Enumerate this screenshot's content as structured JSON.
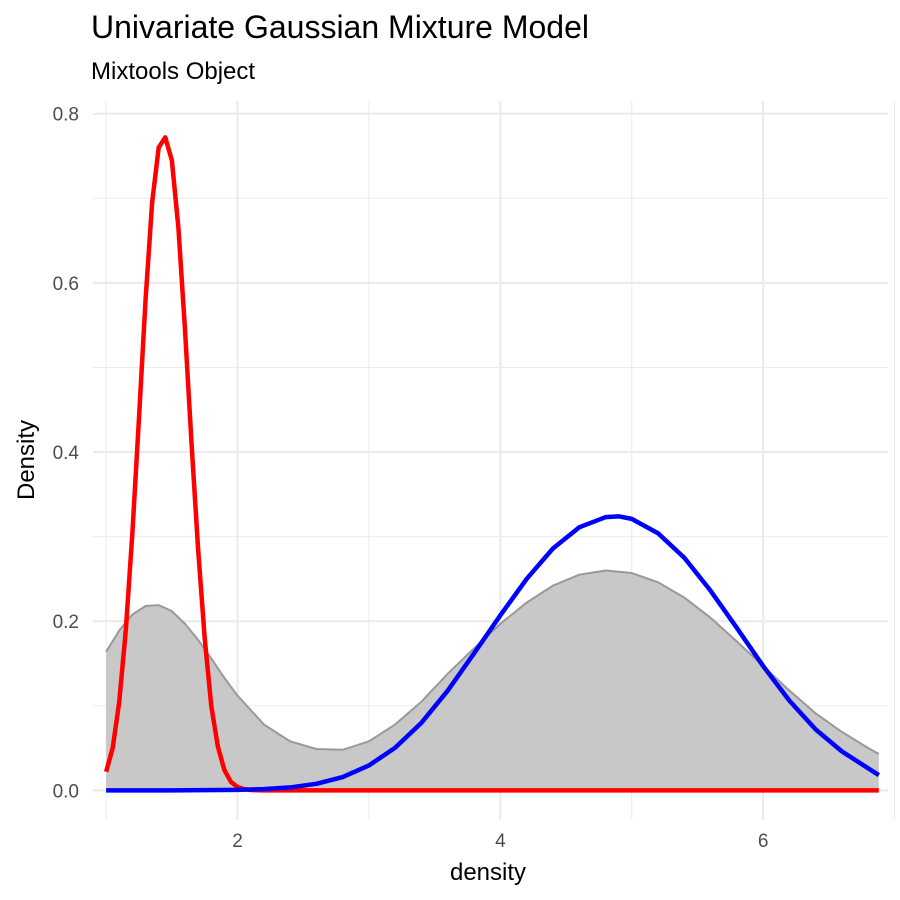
{
  "chart_data": {
    "type": "area",
    "title": "Univariate Gaussian Mixture Model",
    "subtitle": "Mixtools Object",
    "xlabel": "density",
    "ylabel": "Density",
    "xlim": [
      0.9,
      6.95
    ],
    "ylim": [
      -0.035,
      0.815
    ],
    "x_ticks": [
      2,
      4,
      6
    ],
    "x_minor_ticks": [
      1,
      3,
      5,
      7
    ],
    "y_ticks": [
      0.0,
      0.2,
      0.4,
      0.6,
      0.8
    ],
    "y_tick_labels": [
      "0.0",
      "0.2",
      "0.4",
      "0.6",
      "0.8"
    ],
    "grid": true,
    "colors": {
      "density_fill": "#c8c8c8",
      "density_line": "#999999",
      "component_1": "#ff0000",
      "component_2": "#0000ff",
      "grid": "#ebebeb"
    },
    "series": [
      {
        "kind": "area",
        "x": [
          1.0,
          1.1,
          1.2,
          1.3,
          1.4,
          1.5,
          1.6,
          1.7,
          1.8,
          1.9,
          2.0,
          2.2,
          2.4,
          2.6,
          2.8,
          3.0,
          3.2,
          3.4,
          3.6,
          3.8,
          4.0,
          4.2,
          4.4,
          4.6,
          4.8,
          5.0,
          5.2,
          5.4,
          5.6,
          5.8,
          6.0,
          6.2,
          6.4,
          6.6,
          6.8,
          6.88
        ],
        "values": [
          0.164,
          0.189,
          0.208,
          0.218,
          0.219,
          0.212,
          0.197,
          0.178,
          0.156,
          0.133,
          0.112,
          0.078,
          0.058,
          0.049,
          0.048,
          0.058,
          0.078,
          0.105,
          0.138,
          0.168,
          0.197,
          0.222,
          0.242,
          0.255,
          0.26,
          0.257,
          0.246,
          0.228,
          0.204,
          0.176,
          0.147,
          0.118,
          0.091,
          0.069,
          0.05,
          0.043
        ]
      },
      {
        "kind": "line",
        "x": [
          1.0,
          1.05,
          1.1,
          1.15,
          1.2,
          1.25,
          1.3,
          1.35,
          1.4,
          1.45,
          1.5,
          1.55,
          1.6,
          1.65,
          1.7,
          1.75,
          1.8,
          1.85,
          1.9,
          1.95,
          2.0,
          2.05,
          2.1,
          2.2,
          2.4,
          3.0,
          4.0,
          5.0,
          6.0,
          6.88
        ],
        "values": [
          0.022,
          0.05,
          0.105,
          0.19,
          0.305,
          0.44,
          0.58,
          0.695,
          0.76,
          0.772,
          0.745,
          0.665,
          0.545,
          0.41,
          0.285,
          0.18,
          0.1,
          0.052,
          0.024,
          0.01,
          0.004,
          0.0015,
          0.0005,
          0.0,
          0.0,
          0.0,
          0.0,
          0.0,
          0.0,
          0.0
        ]
      },
      {
        "kind": "line",
        "x": [
          1.0,
          1.5,
          2.0,
          2.2,
          2.4,
          2.6,
          2.8,
          3.0,
          3.2,
          3.4,
          3.6,
          3.8,
          4.0,
          4.2,
          4.4,
          4.6,
          4.8,
          4.9,
          5.0,
          5.2,
          5.4,
          5.6,
          5.8,
          6.0,
          6.2,
          6.4,
          6.6,
          6.88
        ],
        "values": [
          0.0,
          0.0,
          0.0006,
          0.0015,
          0.0035,
          0.0078,
          0.0158,
          0.0295,
          0.0505,
          0.08,
          0.118,
          0.162,
          0.207,
          0.25,
          0.286,
          0.311,
          0.323,
          0.324,
          0.321,
          0.304,
          0.275,
          0.236,
          0.192,
          0.147,
          0.106,
          0.072,
          0.046,
          0.018
        ]
      }
    ]
  }
}
